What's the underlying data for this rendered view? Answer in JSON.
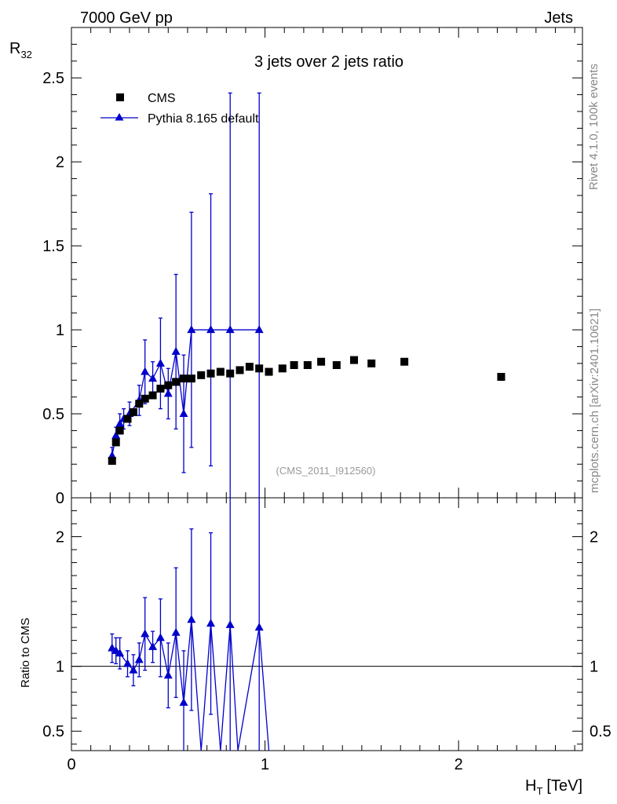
{
  "header": {
    "left": "7000 GeV pp",
    "right": "Jets"
  },
  "side": {
    "rivet": "Rivet 4.1.0,  100k events",
    "mcplots": "mcplots.cern.ch [arXiv:2401.10621]"
  },
  "colors": {
    "cms": "#000000",
    "pythia": "#0000cc",
    "label_gray": "#888888"
  },
  "chart_data": [
    {
      "type": "scatter",
      "title": "3 jets over 2 jets ratio",
      "watermark": "(CMS_2011_I912560)",
      "ylabel": "R",
      "ylabel_sub": "32",
      "xlabel": "",
      "xlim": [
        0,
        2.64
      ],
      "ylim": [
        0,
        2.8
      ],
      "yticks": [
        0,
        0.5,
        1,
        1.5,
        2,
        2.5
      ],
      "ytick_labels": [
        "0",
        "0.5",
        "1",
        "1.5",
        "2",
        "2.5"
      ],
      "legend": {
        "position": "top-left",
        "entries": [
          "CMS",
          "Pythia 8.165 default"
        ]
      },
      "series": [
        {
          "name": "CMS",
          "marker": "square",
          "points": [
            [
              0.21,
              0.22
            ],
            [
              0.23,
              0.33
            ],
            [
              0.25,
              0.4
            ],
            [
              0.29,
              0.47
            ],
            [
              0.32,
              0.51
            ],
            [
              0.35,
              0.56
            ],
            [
              0.38,
              0.59
            ],
            [
              0.42,
              0.61
            ],
            [
              0.46,
              0.65
            ],
            [
              0.5,
              0.67
            ],
            [
              0.54,
              0.69
            ],
            [
              0.58,
              0.71
            ],
            [
              0.62,
              0.71
            ],
            [
              0.67,
              0.73
            ],
            [
              0.72,
              0.74
            ],
            [
              0.77,
              0.75
            ],
            [
              0.82,
              0.74
            ],
            [
              0.87,
              0.76
            ],
            [
              0.92,
              0.78
            ],
            [
              0.97,
              0.77
            ],
            [
              1.02,
              0.75
            ],
            [
              1.09,
              0.77
            ],
            [
              1.15,
              0.79
            ],
            [
              1.22,
              0.79
            ],
            [
              1.29,
              0.81
            ],
            [
              1.37,
              0.79
            ],
            [
              1.46,
              0.82
            ],
            [
              1.55,
              0.8
            ],
            [
              1.72,
              0.81
            ],
            [
              2.22,
              0.72
            ]
          ]
        },
        {
          "name": "Pythia 8.165 default",
          "marker": "triangle",
          "points": [
            [
              0.21,
              0.25,
              0.05
            ],
            [
              0.23,
              0.37,
              0.05
            ],
            [
              0.25,
              0.44,
              0.06
            ],
            [
              0.27,
              0.47,
              0.06
            ],
            [
              0.3,
              0.5,
              0.07
            ],
            [
              0.35,
              0.58,
              0.09
            ],
            [
              0.38,
              0.75,
              0.19
            ],
            [
              0.42,
              0.71,
              0.1
            ],
            [
              0.46,
              0.8,
              0.27
            ],
            [
              0.5,
              0.62,
              0.15
            ],
            [
              0.54,
              0.87,
              0.46
            ],
            [
              0.58,
              0.5,
              0.35
            ],
            [
              0.62,
              1.0,
              0.7
            ],
            [
              0.72,
              1.0,
              0.81
            ],
            [
              0.82,
              1.0,
              1.41
            ],
            [
              0.97,
              1.0,
              1.41
            ]
          ]
        }
      ]
    },
    {
      "type": "scatter",
      "title": "",
      "xlabel": "H",
      "xlabel_sub": "T",
      "xlabel_unit": "[TeV]",
      "ylabel": "Ratio to CMS",
      "xlim": [
        0,
        2.64
      ],
      "ylim": [
        0.35,
        2.3
      ],
      "xticks": [
        0,
        1,
        2
      ],
      "xtick_labels": [
        "0",
        "1",
        "2"
      ],
      "yticks": [
        0.5,
        1,
        2
      ],
      "ytick_labels": [
        "0.5",
        "1",
        "2"
      ],
      "reference_line": 1,
      "series": [
        {
          "name": "Pythia 8.165 default",
          "marker": "triangle",
          "points": [
            [
              0.21,
              1.14,
              0.11
            ],
            [
              0.23,
              1.12,
              0.1
            ],
            [
              0.25,
              1.1,
              0.12
            ],
            [
              0.29,
              1.02,
              0.1
            ],
            [
              0.32,
              0.97,
              0.12
            ],
            [
              0.35,
              1.05,
              0.13
            ],
            [
              0.38,
              1.25,
              0.28
            ],
            [
              0.42,
              1.15,
              0.12
            ],
            [
              0.46,
              1.22,
              0.3
            ],
            [
              0.5,
              0.93,
              0.25
            ],
            [
              0.54,
              1.26,
              0.5
            ],
            [
              0.58,
              0.72,
              0.4
            ],
            [
              0.62,
              1.36,
              0.7
            ],
            [
              0.67,
              0.33,
              0
            ],
            [
              0.72,
              1.33,
              0.7
            ],
            [
              0.77,
              0.33,
              0
            ],
            [
              0.82,
              1.32,
              1.4
            ],
            [
              0.86,
              0.33,
              0
            ],
            [
              0.97,
              1.3,
              1.4
            ],
            [
              1.02,
              0.33,
              0
            ]
          ]
        }
      ]
    }
  ]
}
